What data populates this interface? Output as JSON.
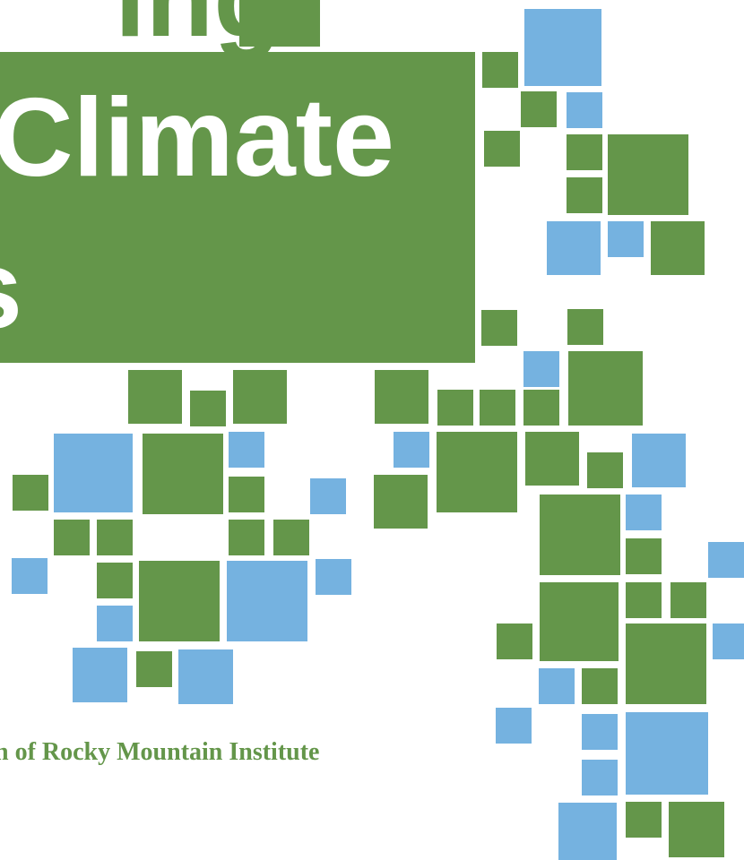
{
  "cover": {
    "title_lines": [
      "ing",
      "Climate",
      "s"
    ],
    "subtitle": "n of Rocky Mountain Institute"
  }
}
